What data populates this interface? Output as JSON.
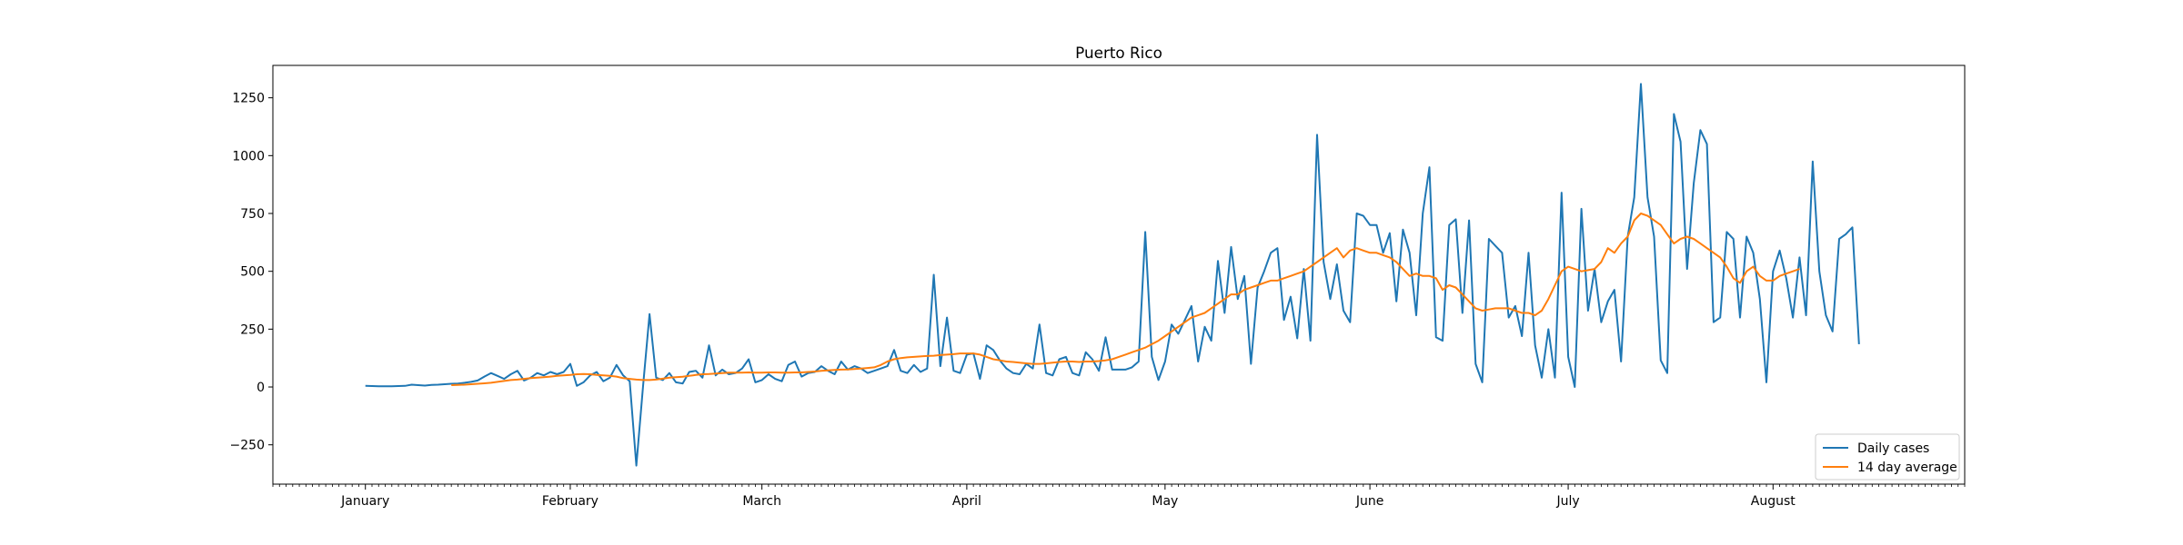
{
  "chart_data": {
    "type": "line",
    "title": "Puerto Rico",
    "xlabel": "",
    "ylabel": "",
    "x_axis": {
      "month_labels": [
        "January",
        "February",
        "March",
        "April",
        "May",
        "June",
        "July",
        "August"
      ],
      "range_days": [
        -14,
        242
      ]
    },
    "y_axis": {
      "ylim": [
        -420,
        1390
      ],
      "ticks": [
        -250,
        0,
        250,
        500,
        750,
        1000,
        1250
      ],
      "tick_labels": [
        "−250",
        "0",
        "250",
        "500",
        "750",
        "1000",
        "1250"
      ]
    },
    "grid": false,
    "legend": {
      "position": "bottom-right"
    },
    "colors": {
      "daily": "#1f77b4",
      "average": "#ff7f0e"
    },
    "series": [
      {
        "name": "Daily cases",
        "start_day": 0,
        "values": [
          5,
          4,
          3,
          3,
          3,
          4,
          5,
          10,
          8,
          6,
          9,
          10,
          12,
          14,
          15,
          18,
          22,
          28,
          45,
          60,
          48,
          35,
          55,
          70,
          28,
          40,
          60,
          50,
          65,
          55,
          65,
          100,
          5,
          20,
          50,
          65,
          25,
          40,
          95,
          50,
          25,
          -340,
          0,
          315,
          40,
          30,
          60,
          20,
          15,
          65,
          70,
          40,
          180,
          50,
          75,
          55,
          60,
          80,
          120,
          20,
          30,
          55,
          35,
          25,
          95,
          110,
          45,
          60,
          65,
          90,
          70,
          55,
          110,
          75,
          90,
          80,
          60,
          70,
          80,
          90,
          160,
          70,
          60,
          95,
          65,
          80,
          485,
          90,
          300,
          70,
          60,
          140,
          145,
          35,
          180,
          160,
          115,
          80,
          60,
          55,
          100,
          80,
          270,
          60,
          50,
          120,
          130,
          60,
          50,
          150,
          120,
          70,
          215,
          75,
          75,
          75,
          85,
          110,
          670,
          130,
          30,
          110,
          270,
          230,
          290,
          350,
          110,
          260,
          200,
          545,
          320,
          605,
          380,
          480,
          100,
          430,
          500,
          580,
          600,
          290,
          390,
          210,
          510,
          200,
          1090,
          540,
          380,
          530,
          330,
          280,
          750,
          740,
          700,
          700,
          580,
          665,
          370,
          680,
          580,
          310,
          750,
          950,
          215,
          200,
          700,
          725,
          320,
          720,
          100,
          20,
          640,
          610,
          580,
          300,
          350,
          220,
          580,
          180,
          40,
          250,
          40,
          840,
          130,
          0,
          770,
          330,
          510,
          280,
          370,
          420,
          110,
          650,
          820,
          1310,
          820,
          650,
          115,
          60,
          1180,
          1060,
          510,
          880,
          1110,
          1050,
          280,
          300,
          670,
          640,
          300,
          650,
          580,
          380,
          20,
          500,
          590,
          470,
          300,
          560,
          310,
          975,
          500,
          310,
          240,
          640,
          660,
          690,
          185
        ]
      },
      {
        "name": "14 day average",
        "start_day": 13,
        "values": [
          8,
          9,
          10,
          12,
          14,
          16,
          18,
          22,
          26,
          30,
          32,
          35,
          38,
          40,
          42,
          45,
          48,
          50,
          52,
          55,
          56,
          55,
          52,
          50,
          48,
          45,
          38,
          35,
          32,
          30,
          30,
          32,
          36,
          40,
          42,
          44,
          48,
          52,
          55,
          56,
          58,
          60,
          62,
          62,
          62,
          63,
          62,
          62,
          63,
          63,
          62,
          62,
          63,
          63,
          65,
          67,
          70,
          72,
          74,
          75,
          76,
          78,
          80,
          82,
          85,
          95,
          110,
          120,
          125,
          128,
          130,
          132,
          134,
          135,
          138,
          140,
          142,
          145,
          145,
          145,
          140,
          130,
          120,
          115,
          110,
          108,
          105,
          102,
          100,
          100,
          102,
          105,
          108,
          110,
          110,
          108,
          110,
          110,
          112,
          115,
          120,
          130,
          140,
          150,
          160,
          170,
          185,
          200,
          220,
          240,
          260,
          280,
          300,
          310,
          320,
          340,
          360,
          380,
          400,
          400,
          420,
          430,
          440,
          450,
          460,
          460,
          470,
          480,
          490,
          500,
          520,
          540,
          560,
          580,
          600,
          560,
          590,
          600,
          590,
          580,
          580,
          570,
          560,
          540,
          510,
          480,
          490,
          480,
          480,
          470,
          420,
          440,
          430,
          400,
          370,
          340,
          330,
          335,
          340,
          340,
          340,
          330,
          320,
          320,
          310,
          330,
          380,
          440,
          500,
          520,
          510,
          500,
          505,
          510,
          540,
          600,
          580,
          620,
          650,
          720,
          750,
          740,
          720,
          700,
          660,
          620,
          640,
          650,
          640,
          620,
          600,
          580,
          560,
          520,
          470,
          450,
          500,
          520,
          480,
          460,
          460,
          480,
          490,
          500,
          510
        ]
      }
    ]
  }
}
